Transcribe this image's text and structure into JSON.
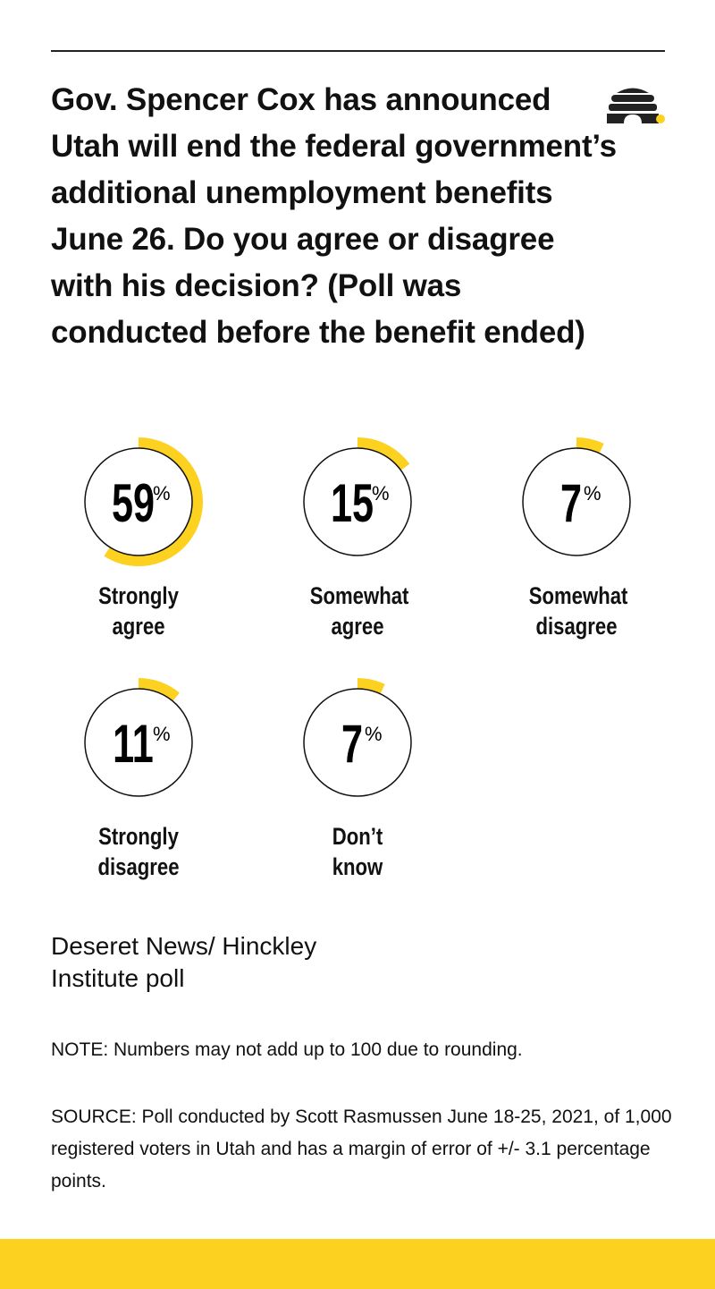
{
  "title": "Gov. Spencer Cox has announced Utah will end the federal government’s additional unemployment benefits June 26. Do you agree or disagree with his decision? (Poll was conducted before the benefit ended)",
  "logo_icon": "beehive-icon",
  "colors": {
    "accent": "#fdd120",
    "ink": "#111111"
  },
  "chart_data": {
    "type": "donut",
    "unit": "%",
    "categories": [
      "Strongly agree",
      "Somewhat agree",
      "Somewhat disagree",
      "Strongly disagree",
      "Don’t know"
    ],
    "values": [
      59,
      15,
      7,
      11,
      7
    ],
    "value_labels": [
      "59",
      "15",
      "7",
      "11",
      "7"
    ]
  },
  "source_name": "Deseret News/ Hinckley Institute poll",
  "note": "NOTE: Numbers may not add up to 100 due to rounding.",
  "source": "SOURCE: Poll conducted by Scott Rasmussen June 18-25, 2021, of 1,000 registered voters in Utah and has a margin of error of +/- 3.1 percentage points."
}
